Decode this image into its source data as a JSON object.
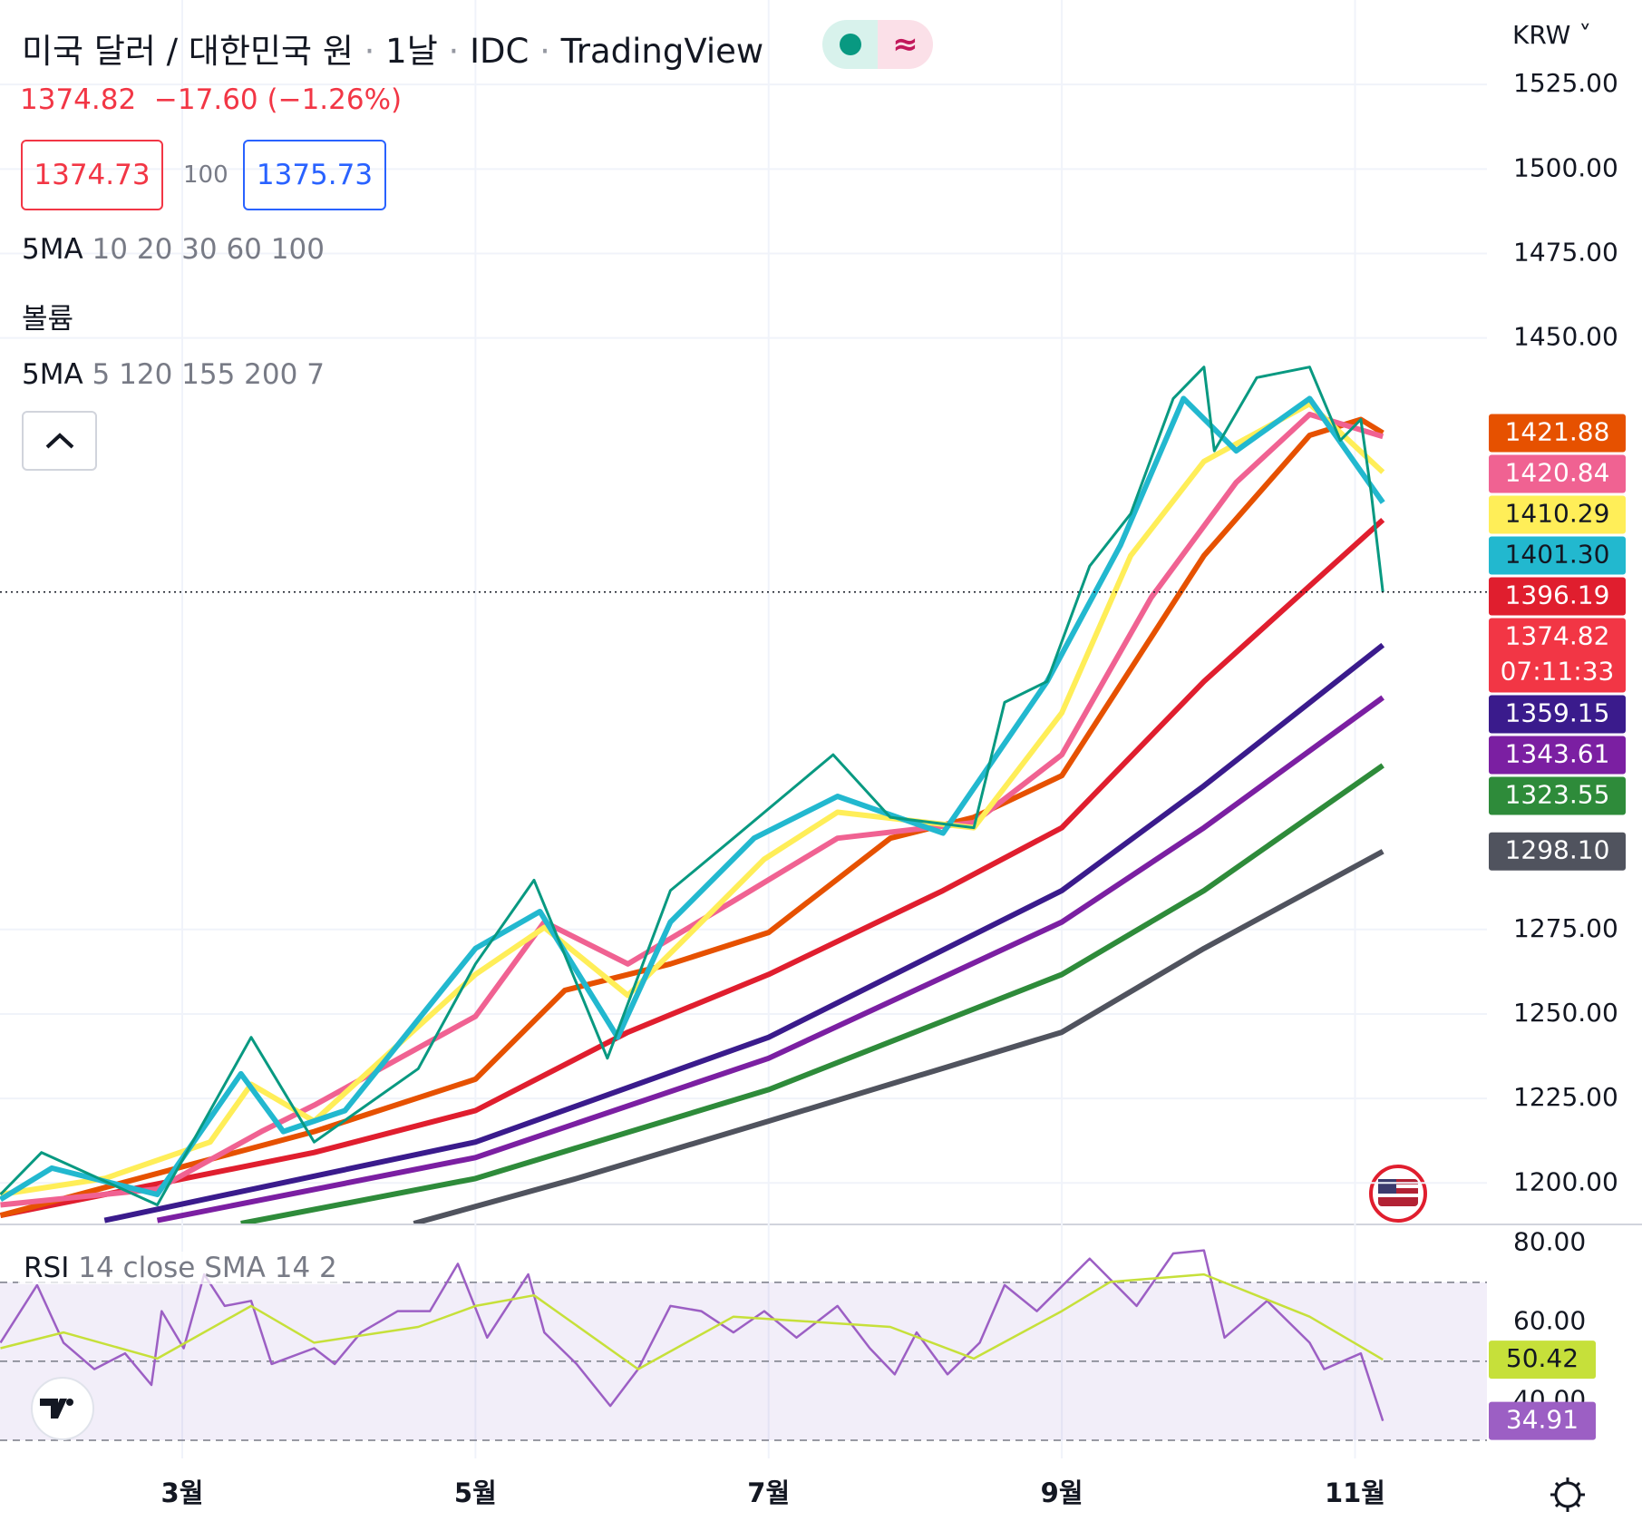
{
  "header": {
    "title": "미국 달러 / 대한민국 원",
    "interval": "1날",
    "source": "IDC",
    "platform": "TradingView",
    "price": "1374.82",
    "change": "−17.60 (−1.26%)",
    "bid": "1374.73",
    "spread": "100",
    "ask": "1375.73",
    "ma_row_1_name": "5MA",
    "ma_row_1_params": "10 20 30 60 100",
    "volume": "볼륨",
    "ma_row_2_name": "5MA",
    "ma_row_2_params": "5 120 155 200 7",
    "currency": "KRW"
  },
  "chart_data": [
    {
      "type": "line",
      "xlim": [
        1.757,
        11.9
      ],
      "ylim": [
        1188,
        1550
      ],
      "xticks": [
        {
          "value": 3,
          "label": "3월"
        },
        {
          "value": 5,
          "label": "5월"
        },
        {
          "value": 7,
          "label": "7월"
        },
        {
          "value": 9,
          "label": "9월"
        },
        {
          "value": 11,
          "label": "11월"
        }
      ],
      "yticks": [
        {
          "value": 1200,
          "label": "1200.00"
        },
        {
          "value": 1225,
          "label": "1225.00"
        },
        {
          "value": 1250,
          "label": "1250.00"
        },
        {
          "value": 1275,
          "label": "1275.00"
        },
        {
          "value": 1450,
          "label": "1450.00"
        },
        {
          "value": 1475,
          "label": "1475.00"
        },
        {
          "value": 1500,
          "label": "1500.00"
        },
        {
          "value": 1525,
          "label": "1525.00"
        }
      ],
      "grid": true,
      "series": [
        {
          "color": "#50535e",
          "tag": "1298.10",
          "x": [
            4.58,
            5.69,
            7.0,
            9.0,
            9.97,
            11.19
          ],
          "values": [
            1188,
            1201.3,
            1218.3,
            1244.6,
            1269.4,
            1298.1
          ]
        },
        {
          "color": "#2e8b3a",
          "tag": "1323.55",
          "x": [
            3.4,
            5.0,
            7.0,
            9.0,
            9.97,
            11.19
          ],
          "values": [
            1188,
            1201.3,
            1227.6,
            1261.7,
            1286.5,
            1323.55
          ]
        },
        {
          "color": "#7b1fa2",
          "tag": "1343.61",
          "x": [
            2.83,
            5.0,
            7.0,
            9.0,
            9.97,
            11.19
          ],
          "values": [
            1188.9,
            1207.5,
            1236.9,
            1277.2,
            1305.1,
            1343.61
          ]
        },
        {
          "color": "#3a1b8c",
          "tag": "1359.15",
          "x": [
            2.47,
            5.0,
            7.0,
            9.0,
            9.97,
            11.19
          ],
          "values": [
            1188.9,
            1212.1,
            1243.1,
            1286.5,
            1317.5,
            1359.15
          ]
        },
        {
          "color": "#e01e2e",
          "tag": "1396.19",
          "x": [
            1.76,
            3.9,
            5.0,
            6.04,
            7.0,
            8.19,
            9.0,
            9.97,
            11.19
          ],
          "values": [
            1190.4,
            1209,
            1221.4,
            1244.6,
            1261.7,
            1286.5,
            1305.1,
            1348.4,
            1396.19
          ]
        },
        {
          "color": "#e65100",
          "tag": "1421.88",
          "x": [
            1.76,
            3.9,
            5.0,
            5.61,
            6.33,
            7.0,
            7.83,
            8.4,
            9.0,
            9.97,
            10.69,
            11.04,
            11.19
          ],
          "values": [
            1190.4,
            1215.2,
            1230.7,
            1257,
            1264.8,
            1274.1,
            1302,
            1308.2,
            1320.5,
            1385.6,
            1421.2,
            1425.9,
            1421.88
          ]
        },
        {
          "color": "#f06292",
          "tag": "1420.84",
          "x": [
            1.76,
            2.83,
            3.54,
            3.9,
            5.0,
            5.47,
            6.04,
            6.76,
            7.47,
            8.4,
            9.0,
            9.61,
            10.19,
            10.69,
            11.19
          ],
          "values": [
            1193.5,
            1198.2,
            1215.2,
            1223,
            1249.3,
            1277.2,
            1264.8,
            1283.4,
            1302,
            1306.6,
            1326.7,
            1373.2,
            1407.3,
            1427.4,
            1420.84
          ]
        },
        {
          "color": "#ffee58",
          "tag": "1410.29",
          "x": [
            1.76,
            2.47,
            3.19,
            3.47,
            3.9,
            5.0,
            5.47,
            6.04,
            6.4,
            6.97,
            7.47,
            8.4,
            9.0,
            9.47,
            9.97,
            10.69,
            11.19
          ],
          "values": [
            1196.6,
            1201.3,
            1212.1,
            1229.2,
            1218.3,
            1261.7,
            1275.6,
            1255.5,
            1271,
            1295.8,
            1309.7,
            1305.1,
            1339.1,
            1385.6,
            1413.5,
            1430.5,
            1410.29
          ]
        },
        {
          "color": "#22b8cf",
          "tag": "1401.30",
          "x": [
            1.76,
            2.11,
            2.83,
            3.4,
            3.69,
            4.11,
            5.0,
            5.44,
            5.97,
            6.33,
            6.9,
            7.47,
            8.19,
            8.9,
            9.4,
            9.83,
            10.19,
            10.69,
            11.19
          ],
          "values": [
            1195.1,
            1204.4,
            1196.6,
            1232.3,
            1215.2,
            1221.4,
            1269.4,
            1280.3,
            1243.1,
            1277.2,
            1302,
            1314.4,
            1303.5,
            1348.4,
            1388.7,
            1432.1,
            1416.6,
            1432.1,
            1401.3
          ]
        },
        {
          "color": "#089981",
          "tag": "1374.82",
          "countdown": "07:11:33",
          "tag_color": "#f23645",
          "x": [
            1.76,
            2.04,
            2.83,
            3.47,
            3.9,
            4.61,
            5.0,
            5.4,
            5.9,
            6.33,
            6.76,
            7.44,
            7.83,
            8.4,
            8.61,
            8.9,
            9.19,
            9.47,
            9.76,
            9.97,
            10.04,
            10.33,
            10.69,
            10.9,
            11.04,
            11.11,
            11.19
          ],
          "values": [
            1196.6,
            1209,
            1193.5,
            1243.1,
            1212.1,
            1233.8,
            1264.8,
            1289.6,
            1236.9,
            1286.5,
            1302,
            1326.7,
            1308.2,
            1305.1,
            1342.2,
            1348.4,
            1382.5,
            1398,
            1432.1,
            1441.4,
            1416.6,
            1438.3,
            1441.4,
            1419.7,
            1425.9,
            1404.2,
            1374.82
          ]
        }
      ]
    },
    {
      "type": "line",
      "title": "RSI",
      "subtitle": "14 close SMA 14 2",
      "xlim": [
        1.757,
        11.9
      ],
      "ylim": [
        25.4,
        84.2
      ],
      "yticks": [
        {
          "value": 40,
          "label": "40.00"
        },
        {
          "value": 60,
          "label": "60.00"
        },
        {
          "value": 80,
          "label": "80.00"
        }
      ],
      "levels": [
        70,
        50,
        30
      ],
      "series": [
        {
          "color": "#9c5fc4",
          "x": [
            1.76,
            2.01,
            2.19,
            2.4,
            2.61,
            2.79,
            2.86,
            3.01,
            3.15,
            3.29,
            3.47,
            3.61,
            3.9,
            4.04,
            4.22,
            4.47,
            4.69,
            4.88,
            5.08,
            5.36,
            5.47,
            5.69,
            5.92,
            6.11,
            6.33,
            6.54,
            6.76,
            6.97,
            7.19,
            7.47,
            7.69,
            7.86,
            8.01,
            8.22,
            8.44,
            8.61,
            8.83,
            9.19,
            9.51,
            9.76,
            9.97,
            10.11,
            10.4,
            10.69,
            10.79,
            11.04,
            11.19
          ],
          "values": [
            54.7,
            69.3,
            54.7,
            48,
            52,
            44,
            62.7,
            53.3,
            72,
            64,
            65.3,
            49.3,
            53.3,
            49.3,
            57.3,
            62.7,
            62.7,
            74.7,
            56,
            72,
            57.3,
            49.3,
            38.7,
            48,
            64,
            62.7,
            57.3,
            62.7,
            56,
            64,
            53.3,
            46.7,
            57.3,
            46.7,
            54.7,
            69.3,
            62.7,
            76,
            64,
            77.3,
            78.1,
            56,
            65.3,
            54.7,
            48,
            52,
            34.91
          ]
        },
        {
          "color": "#c6e03a",
          "x": [
            1.76,
            2.19,
            2.83,
            3.47,
            3.9,
            4.61,
            5.0,
            5.4,
            6.11,
            6.76,
            7.83,
            8.4,
            9.0,
            9.33,
            9.97,
            10.69,
            11.19
          ],
          "values": [
            53.3,
            57.3,
            50.7,
            64,
            54.7,
            58.7,
            64,
            66.7,
            48,
            61.3,
            58.7,
            50.7,
            62.7,
            70.1,
            72,
            61.3,
            50.42
          ]
        }
      ]
    }
  ]
}
